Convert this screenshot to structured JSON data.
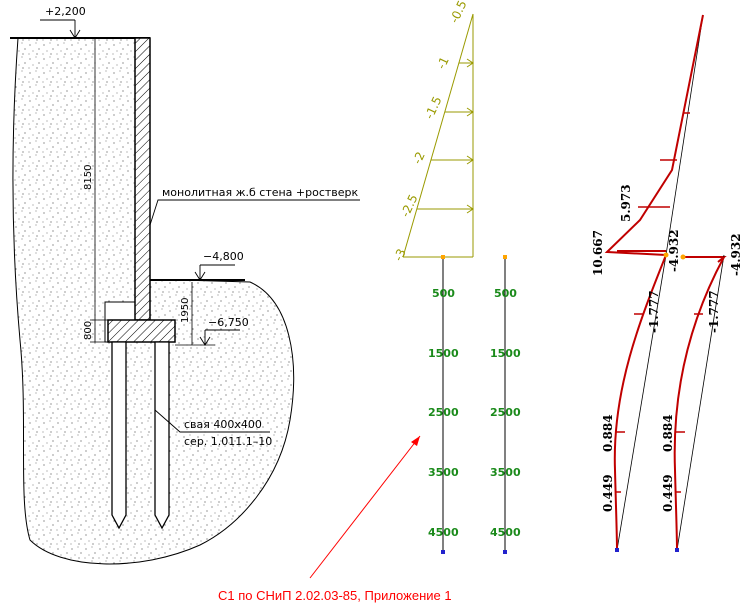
{
  "cross_section": {
    "elev_top": "+2,200",
    "elev_mid": "−4,800",
    "elev_bottom": "−6,750",
    "dim_wall": "8150",
    "dim_grillage": "800",
    "dim_depth": "1950",
    "label_wall": "монолитная ж.б стена +ростверк",
    "label_pile_1": "свая 400x400",
    "label_pile_2": "сер. 1.011.1–10"
  },
  "load_diagram": {
    "labels": [
      "-0.5",
      "-1",
      "-1.5",
      "-2",
      "-2.5",
      "-3"
    ]
  },
  "pile_scales": {
    "left": [
      "500",
      "1500",
      "2500",
      "3500",
      "4500"
    ],
    "right": [
      "500",
      "1500",
      "2500",
      "3500",
      "4500"
    ]
  },
  "moment_diagrams": {
    "left": {
      "top_left": "10.667",
      "top_mid": "5.973",
      "top_right": "-4.932",
      "mid": "-1.777",
      "low1": "0.884",
      "low2": "0.449"
    },
    "right": {
      "top_right": "-4.932",
      "mid": "-1.777",
      "low1": "0.884",
      "low2": "0.449"
    }
  },
  "note": "С1 по СНиП 2.02.03-85, Приложение 1",
  "colors": {
    "load": "#9a9a00",
    "pile_text": "#1a8a1a",
    "moment": "#c00000",
    "note": "#ff0000",
    "node": "#ffa500",
    "base": "#2222cc"
  }
}
